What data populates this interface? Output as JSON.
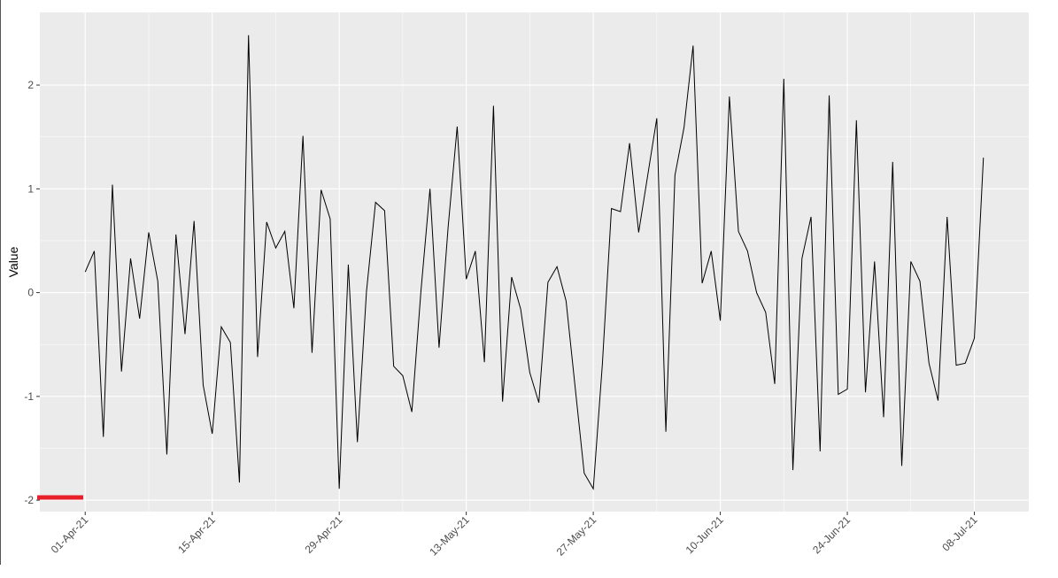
{
  "chart_data": {
    "type": "line",
    "y_label": "Value",
    "color": "#000000",
    "x": [
      "2021-04-01",
      "2021-04-02",
      "2021-04-03",
      "2021-04-04",
      "2021-04-05",
      "2021-04-06",
      "2021-04-07",
      "2021-04-08",
      "2021-04-09",
      "2021-04-10",
      "2021-04-11",
      "2021-04-12",
      "2021-04-13",
      "2021-04-14",
      "2021-04-15",
      "2021-04-16",
      "2021-04-17",
      "2021-04-18",
      "2021-04-19",
      "2021-04-20",
      "2021-04-21",
      "2021-04-22",
      "2021-04-23",
      "2021-04-24",
      "2021-04-25",
      "2021-04-26",
      "2021-04-27",
      "2021-04-28",
      "2021-04-29",
      "2021-04-30",
      "2021-05-01",
      "2021-05-02",
      "2021-05-03",
      "2021-05-04",
      "2021-05-05",
      "2021-05-06",
      "2021-05-07",
      "2021-05-08",
      "2021-05-09",
      "2021-05-10",
      "2021-05-11",
      "2021-05-12",
      "2021-05-13",
      "2021-05-14",
      "2021-05-15",
      "2021-05-16",
      "2021-05-17",
      "2021-05-18",
      "2021-05-19",
      "2021-05-20",
      "2021-05-21",
      "2021-05-22",
      "2021-05-23",
      "2021-05-24",
      "2021-05-25",
      "2021-05-26",
      "2021-05-27",
      "2021-05-28",
      "2021-05-29",
      "2021-05-30",
      "2021-05-31",
      "2021-06-01",
      "2021-06-02",
      "2021-06-03",
      "2021-06-04",
      "2021-06-05",
      "2021-06-06",
      "2021-06-07",
      "2021-06-08",
      "2021-06-09",
      "2021-06-10",
      "2021-06-11",
      "2021-06-12",
      "2021-06-13",
      "2021-06-14",
      "2021-06-15",
      "2021-06-16",
      "2021-06-17",
      "2021-06-18",
      "2021-06-19",
      "2021-06-20",
      "2021-06-21",
      "2021-06-22",
      "2021-06-23",
      "2021-06-24",
      "2021-06-25",
      "2021-06-26",
      "2021-06-27",
      "2021-06-28",
      "2021-06-29",
      "2021-06-30",
      "2021-07-01",
      "2021-07-02",
      "2021-07-03",
      "2021-07-04",
      "2021-07-05",
      "2021-07-06",
      "2021-07-07",
      "2021-07-08",
      "2021-07-09"
    ],
    "values": [
      0.2,
      0.4,
      -1.39,
      1.04,
      -0.76,
      0.33,
      -0.25,
      0.58,
      0.11,
      -1.56,
      0.56,
      -0.4,
      0.69,
      -0.89,
      -1.36,
      -0.33,
      -0.48,
      -1.83,
      2.48,
      -0.62,
      0.68,
      0.43,
      0.59,
      -0.15,
      1.51,
      -0.58,
      0.99,
      0.71,
      -1.89,
      0.27,
      -1.44,
      0.01,
      0.87,
      0.79,
      -0.71,
      -0.8,
      -1.15,
      0.01,
      1.0,
      -0.53,
      0.63,
      1.6,
      0.13,
      0.4,
      -0.67,
      1.8,
      -1.05,
      0.15,
      -0.16,
      -0.77,
      -1.06,
      0.1,
      0.25,
      -0.08,
      -0.91,
      -1.74,
      -1.89,
      -0.69,
      0.81,
      0.78,
      1.44,
      0.58,
      1.13,
      1.68,
      -1.34,
      1.13,
      1.59,
      2.38,
      0.09,
      0.4,
      -0.27,
      1.89,
      0.59,
      0.4,
      0.0,
      -0.19,
      -0.88,
      2.06,
      -1.71,
      0.33,
      0.73,
      -1.53,
      1.9,
      -0.98,
      -0.93,
      1.66,
      -0.96,
      0.3,
      -1.2,
      1.26,
      -1.67,
      0.3,
      0.11,
      -0.68,
      -1.04,
      0.73,
      -0.7,
      -0.68,
      -0.44,
      1.3
    ],
    "xlim": [
      "2021-03-27",
      "2021-07-14"
    ],
    "xticks": [
      {
        "value": "2021-04-01",
        "label": "01-Apr-21"
      },
      {
        "value": "2021-04-15",
        "label": "15-Apr-21"
      },
      {
        "value": "2021-04-29",
        "label": "29-Apr-21"
      },
      {
        "value": "2021-05-13",
        "label": "13-May-21"
      },
      {
        "value": "2021-05-27",
        "label": "27-May-21"
      },
      {
        "value": "2021-06-10",
        "label": "10-Jun-21"
      },
      {
        "value": "2021-06-24",
        "label": "24-Jun-21"
      },
      {
        "value": "2021-07-08",
        "label": "08-Jul-21"
      }
    ],
    "ylim": [
      -2.11,
      2.7
    ],
    "yticks": [
      -2,
      -1,
      0,
      1,
      2
    ],
    "grid": true
  }
}
